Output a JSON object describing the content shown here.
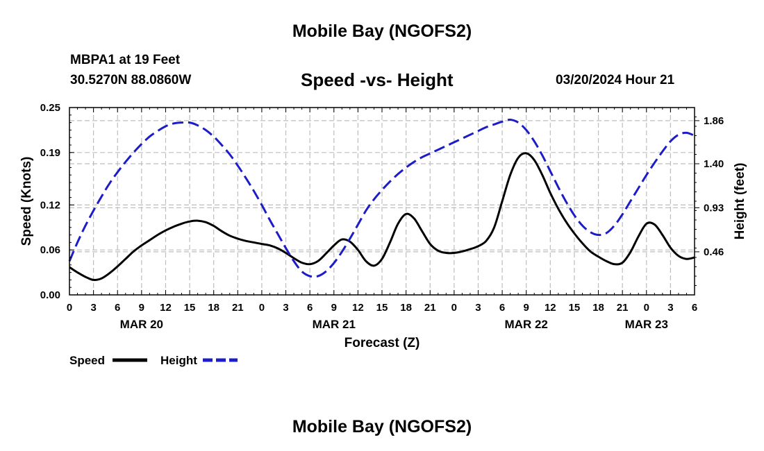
{
  "header": {
    "top_title": "Mobile Bay (NGOFS2)",
    "station_line": "MBPA1 at 19 Feet",
    "coords_line": "30.5270N  88.0860W",
    "subtitle": "Speed -vs- Height",
    "datetime": "03/20/2024 Hour 21",
    "bottom_title": "Mobile Bay (NGOFS2)"
  },
  "legend": {
    "speed_label": "Speed",
    "height_label": "Height"
  },
  "colors": {
    "speed": "#000000",
    "height": "#1c1cc8",
    "grid": "#bdbdbd"
  },
  "chart_data": {
    "type": "line",
    "title": "Speed -vs- Height",
    "xlabel": "Forecast (Z)",
    "ylabel": "Speed (Knots)",
    "y2label": "Height (feet)",
    "xlim": [
      0,
      78
    ],
    "ylim": [
      0,
      0.25
    ],
    "y2lim": [
      0.0,
      2.0
    ],
    "x_tick_values": [
      0,
      3,
      6,
      9,
      12,
      15,
      18,
      21,
      24,
      27,
      30,
      33,
      36,
      39,
      42,
      45,
      48,
      51,
      54,
      57,
      60,
      63,
      66,
      69,
      72,
      75,
      78
    ],
    "x_tick_labels": [
      "0",
      "3",
      "6",
      "9",
      "12",
      "15",
      "18",
      "21",
      "0",
      "3",
      "6",
      "9",
      "12",
      "15",
      "18",
      "21",
      "0",
      "3",
      "6",
      "9",
      "12",
      "15",
      "18",
      "21",
      "0",
      "3",
      "6"
    ],
    "date_labels": [
      {
        "x": 9,
        "label": "MAR 20"
      },
      {
        "x": 33,
        "label": "MAR 21"
      },
      {
        "x": 57,
        "label": "MAR 22"
      },
      {
        "x": 72,
        "label": "MAR 23"
      }
    ],
    "y_ticks": [
      0.0,
      0.06,
      0.12,
      0.19,
      0.25
    ],
    "y_tick_labels": [
      "0.00",
      "0.06",
      "0.12",
      "0.19",
      "0.25"
    ],
    "y2_ticks": [
      0.46,
      0.93,
      1.4,
      1.86
    ],
    "y2_tick_labels": [
      "0.46",
      "0.93",
      "1.40",
      "1.86"
    ],
    "grid": true,
    "legend_position": "bottom-left",
    "series": [
      {
        "name": "Speed",
        "axis": "left",
        "style": "solid",
        "x": [
          0,
          1,
          2,
          3,
          4,
          5,
          6,
          7,
          8,
          9,
          10,
          11,
          12,
          13,
          14,
          15,
          16,
          17,
          18,
          19,
          20,
          21,
          22,
          23,
          24,
          25,
          26,
          27,
          28,
          29,
          30,
          31,
          32,
          33,
          34,
          35,
          36,
          37,
          38,
          39,
          40,
          41,
          42,
          43,
          44,
          45,
          46,
          47,
          48,
          49,
          50,
          51,
          52,
          53,
          54,
          55,
          56,
          57,
          58,
          59,
          60,
          61,
          62,
          63,
          64,
          65,
          66,
          67,
          68,
          69,
          70,
          71,
          72,
          73,
          74,
          75,
          76,
          77,
          78
        ],
        "values": [
          0.037,
          0.03,
          0.024,
          0.02,
          0.022,
          0.029,
          0.038,
          0.048,
          0.058,
          0.066,
          0.073,
          0.08,
          0.086,
          0.091,
          0.095,
          0.098,
          0.099,
          0.097,
          0.092,
          0.085,
          0.079,
          0.075,
          0.072,
          0.07,
          0.068,
          0.066,
          0.062,
          0.056,
          0.049,
          0.043,
          0.041,
          0.045,
          0.055,
          0.066,
          0.074,
          0.071,
          0.06,
          0.045,
          0.039,
          0.048,
          0.07,
          0.095,
          0.108,
          0.102,
          0.085,
          0.068,
          0.059,
          0.056,
          0.056,
          0.058,
          0.061,
          0.065,
          0.072,
          0.09,
          0.125,
          0.16,
          0.183,
          0.189,
          0.18,
          0.16,
          0.136,
          0.115,
          0.097,
          0.082,
          0.069,
          0.058,
          0.051,
          0.045,
          0.041,
          0.043,
          0.057,
          0.078,
          0.095,
          0.094,
          0.08,
          0.063,
          0.052,
          0.048,
          0.05
        ]
      },
      {
        "name": "Height",
        "axis": "right",
        "style": "dashed",
        "x": [
          0,
          1,
          2,
          3,
          4,
          5,
          6,
          7,
          8,
          9,
          10,
          11,
          12,
          13,
          14,
          15,
          16,
          17,
          18,
          19,
          20,
          21,
          22,
          23,
          24,
          25,
          26,
          27,
          28,
          29,
          30,
          31,
          32,
          33,
          34,
          35,
          36,
          37,
          38,
          39,
          40,
          41,
          42,
          43,
          44,
          45,
          46,
          47,
          48,
          49,
          50,
          51,
          52,
          53,
          54,
          55,
          56,
          57,
          58,
          59,
          60,
          61,
          62,
          63,
          64,
          65,
          66,
          67,
          68,
          69,
          70,
          71,
          72,
          73,
          74,
          75,
          76,
          77,
          78
        ],
        "values": [
          0.36,
          0.56,
          0.74,
          0.9,
          1.05,
          1.19,
          1.31,
          1.42,
          1.52,
          1.61,
          1.69,
          1.75,
          1.8,
          1.83,
          1.84,
          1.84,
          1.81,
          1.76,
          1.69,
          1.6,
          1.5,
          1.38,
          1.25,
          1.11,
          0.96,
          0.8,
          0.65,
          0.5,
          0.36,
          0.25,
          0.2,
          0.2,
          0.25,
          0.34,
          0.46,
          0.6,
          0.75,
          0.9,
          1.02,
          1.12,
          1.21,
          1.29,
          1.36,
          1.42,
          1.47,
          1.51,
          1.55,
          1.59,
          1.63,
          1.67,
          1.71,
          1.75,
          1.79,
          1.82,
          1.85,
          1.87,
          1.84,
          1.76,
          1.64,
          1.49,
          1.32,
          1.15,
          0.99,
          0.85,
          0.74,
          0.67,
          0.64,
          0.66,
          0.74,
          0.86,
          1.0,
          1.14,
          1.28,
          1.41,
          1.53,
          1.64,
          1.71,
          1.73,
          1.7
        ]
      }
    ]
  }
}
